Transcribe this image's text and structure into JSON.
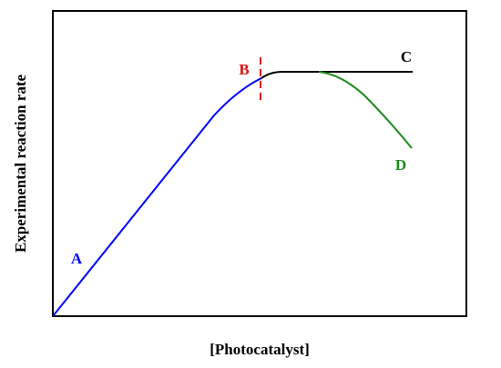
{
  "axes": {
    "x_label": "[Photocatalyst]",
    "y_label": "Experimental reaction rate"
  },
  "labels": {
    "a": "A",
    "b": "B",
    "c": "C",
    "d": "D"
  }
}
